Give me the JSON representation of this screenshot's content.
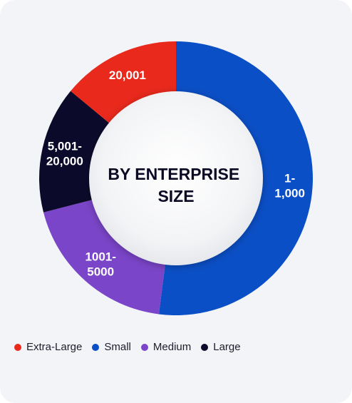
{
  "chart_data": {
    "type": "pie",
    "title": "BY ENTERPRISE SIZE",
    "title_lines": [
      "BY ENTERPRISE",
      "SIZE"
    ],
    "style": "donut",
    "slices": [
      {
        "key": "small",
        "name": "Small",
        "label_lines": [
          "1-",
          "1,000"
        ],
        "value": 52,
        "color": "#0b4fc6"
      },
      {
        "key": "medium",
        "name": "Medium",
        "label_lines": [
          "1001-",
          "5000"
        ],
        "value": 19,
        "color": "#7a45c8"
      },
      {
        "key": "large",
        "name": "Large",
        "label_lines": [
          "5,001-",
          "20,000"
        ],
        "value": 15,
        "color": "#0c0a2a"
      },
      {
        "key": "extra_large",
        "name": "Extra-Large",
        "label_lines": [
          "20,001"
        ],
        "value": 14,
        "color": "#e8291c"
      }
    ],
    "legend": [
      {
        "name": "Extra-Large",
        "color": "#e8291c"
      },
      {
        "name": "Small",
        "color": "#0b4fc6"
      },
      {
        "name": "Medium",
        "color": "#7a45c8"
      },
      {
        "name": "Large",
        "color": "#0c0a2a"
      }
    ],
    "legend_position": "bottom-left",
    "grid": false
  }
}
